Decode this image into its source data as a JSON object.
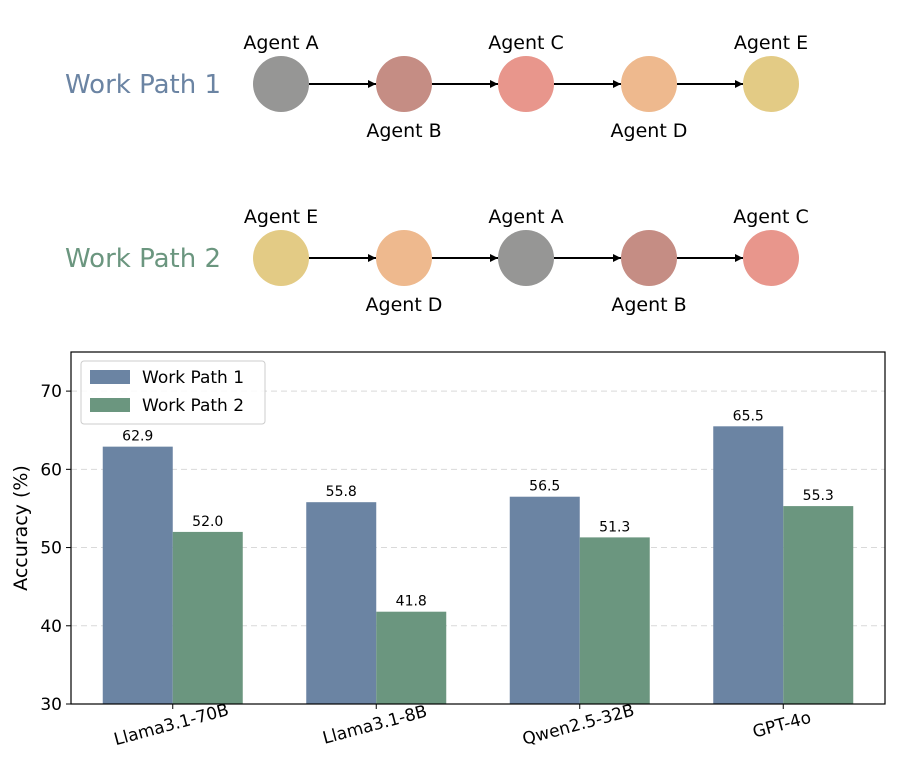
{
  "work_paths": [
    {
      "title": "Work Path 1",
      "title_color": "#6b84a3",
      "agents": [
        {
          "name": "Agent A",
          "color": "#969695"
        },
        {
          "name": "Agent B",
          "color": "#c58d84"
        },
        {
          "name": "Agent C",
          "color": "#e8968c"
        },
        {
          "name": "Agent D",
          "color": "#eeb98e"
        },
        {
          "name": "Agent E",
          "color": "#e3cb85"
        }
      ]
    },
    {
      "title": "Work Path 2",
      "title_color": "#6b967f",
      "agents": [
        {
          "name": "Agent E",
          "color": "#e3cb85"
        },
        {
          "name": "Agent D",
          "color": "#eeb98e"
        },
        {
          "name": "Agent A",
          "color": "#969695"
        },
        {
          "name": "Agent B",
          "color": "#c58d84"
        },
        {
          "name": "Agent C",
          "color": "#e8968c"
        }
      ]
    }
  ],
  "chart_data": {
    "type": "bar",
    "categories": [
      "Llama3.1-70B",
      "Llama3.1-8B",
      "Qwen2.5-32B",
      "GPT-4o"
    ],
    "series": [
      {
        "name": "Work Path 1",
        "values": [
          62.9,
          55.8,
          56.5,
          65.5
        ],
        "color": "#6b84a3"
      },
      {
        "name": "Work Path 2",
        "values": [
          52.0,
          41.8,
          51.3,
          55.3
        ],
        "color": "#6b967f"
      }
    ],
    "ylabel": "Accuracy (%)",
    "xlabel": "",
    "ylim": [
      30,
      75
    ],
    "yticks": [
      30,
      40,
      50,
      60,
      70
    ],
    "grid": true,
    "legend": "top-left"
  }
}
